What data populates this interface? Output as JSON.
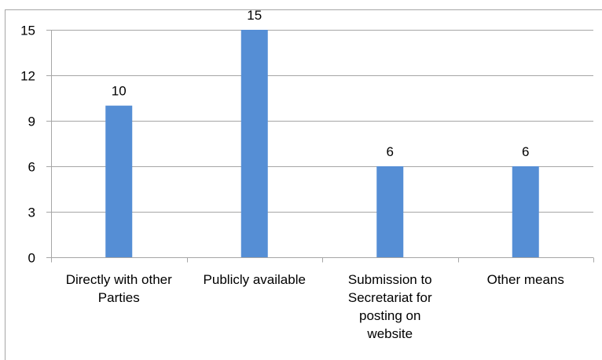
{
  "chart_data": {
    "type": "bar",
    "categories": [
      [
        "Directly with other",
        "Parties"
      ],
      [
        "Publicly available"
      ],
      [
        "Submission to",
        "Secretariat for",
        "posting on",
        "website"
      ],
      [
        "Other means"
      ]
    ],
    "values": [
      10,
      15,
      6,
      6
    ],
    "data_labels": [
      "10",
      "15",
      "6",
      "6"
    ],
    "yticks": [
      0,
      3,
      6,
      9,
      12,
      15
    ],
    "ylim": [
      0,
      15
    ],
    "grid": true,
    "legend": "none",
    "colors": {
      "bar": "#558ed5",
      "grid": "#a6a6a6",
      "axis": "#a6a6a6",
      "text": "#000000"
    }
  }
}
